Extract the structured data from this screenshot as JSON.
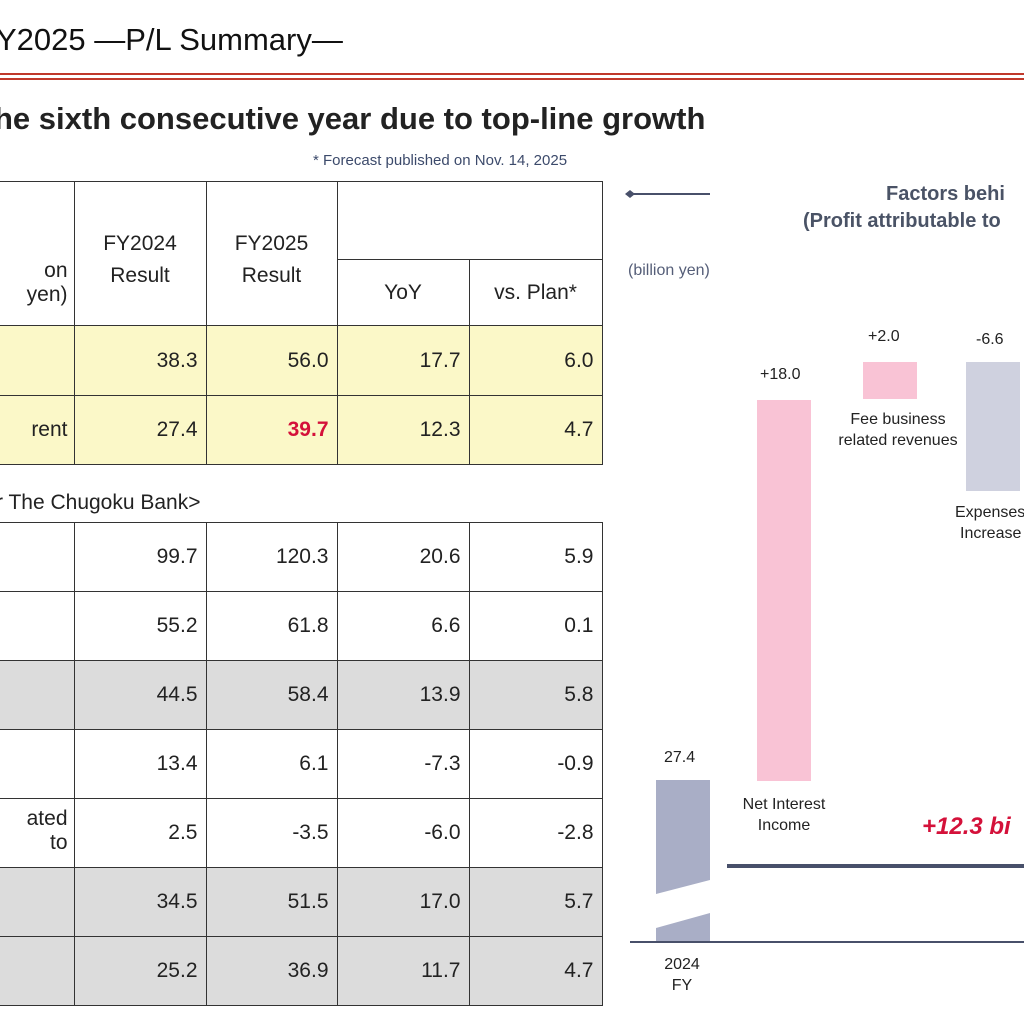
{
  "header": {
    "title": "Y2025 —P/L Summary—",
    "subtitle": "he sixth consecutive year due to top-line growth",
    "footnote": "* Forecast published on Nov. 14, 2025"
  },
  "table_top": {
    "unit_label": "on yen)",
    "col_fy2024": [
      "FY2024",
      "Result"
    ],
    "col_fy2025": [
      "FY2025",
      "Result"
    ],
    "col_yoy": "YoY",
    "col_plan": "vs. Plan*",
    "rows": [
      {
        "label": "",
        "fy2024": "38.3",
        "fy2025": "56.0",
        "yoy": "17.7",
        "plan": "6.0"
      },
      {
        "label": "rent",
        "fy2024": "27.4",
        "fy2025": "39.7",
        "yoy": "12.3",
        "plan": "4.7"
      }
    ]
  },
  "section_label": "r The Chugoku Bank>",
  "table_bottom": {
    "rows": [
      {
        "label": "",
        "fy2024": "99.7",
        "fy2025": "120.3",
        "yoy": "20.6",
        "plan": "5.9"
      },
      {
        "label": "",
        "fy2024": "55.2",
        "fy2025": "61.8",
        "yoy": "6.6",
        "plan": "0.1"
      },
      {
        "label": "",
        "fy2024": "44.5",
        "fy2025": "58.4",
        "yoy": "13.9",
        "plan": "5.8"
      },
      {
        "label": "",
        "fy2024": "13.4",
        "fy2025": "6.1",
        "yoy": "-7.3",
        "plan": "-0.9"
      },
      {
        "label": "ated to",
        "fy2024": "2.5",
        "fy2025": "-3.5",
        "yoy": "-6.0",
        "plan": "-2.8"
      },
      {
        "label": "",
        "fy2024": "34.5",
        "fy2025": "51.5",
        "yoy": "17.0",
        "plan": "5.7"
      },
      {
        "label": "",
        "fy2024": "25.2",
        "fy2025": "36.9",
        "yoy": "11.7",
        "plan": "4.7"
      }
    ]
  },
  "waterfall": {
    "title_line1": "Factors behi",
    "title_line2": "(Profit attributable to",
    "unit": "(billion yen)",
    "base_value_label": "27.4",
    "base_category": [
      "2024",
      "FY"
    ],
    "steps": [
      {
        "value_label": "+18.0",
        "name": [
          "Net Interest",
          "Income"
        ]
      },
      {
        "value_label": "+2.0",
        "name": [
          "Fee business",
          "related revenues"
        ]
      },
      {
        "value_label": "-6.6",
        "name": [
          "Expenses",
          "Increase"
        ]
      }
    ],
    "total_change": "+12.3 bi",
    "colors": {
      "base": "#a9aec6",
      "increase": "#f9c3d5",
      "decrease": "#cfd1df",
      "line": "#48506a",
      "accent": "#d4113a"
    }
  }
}
